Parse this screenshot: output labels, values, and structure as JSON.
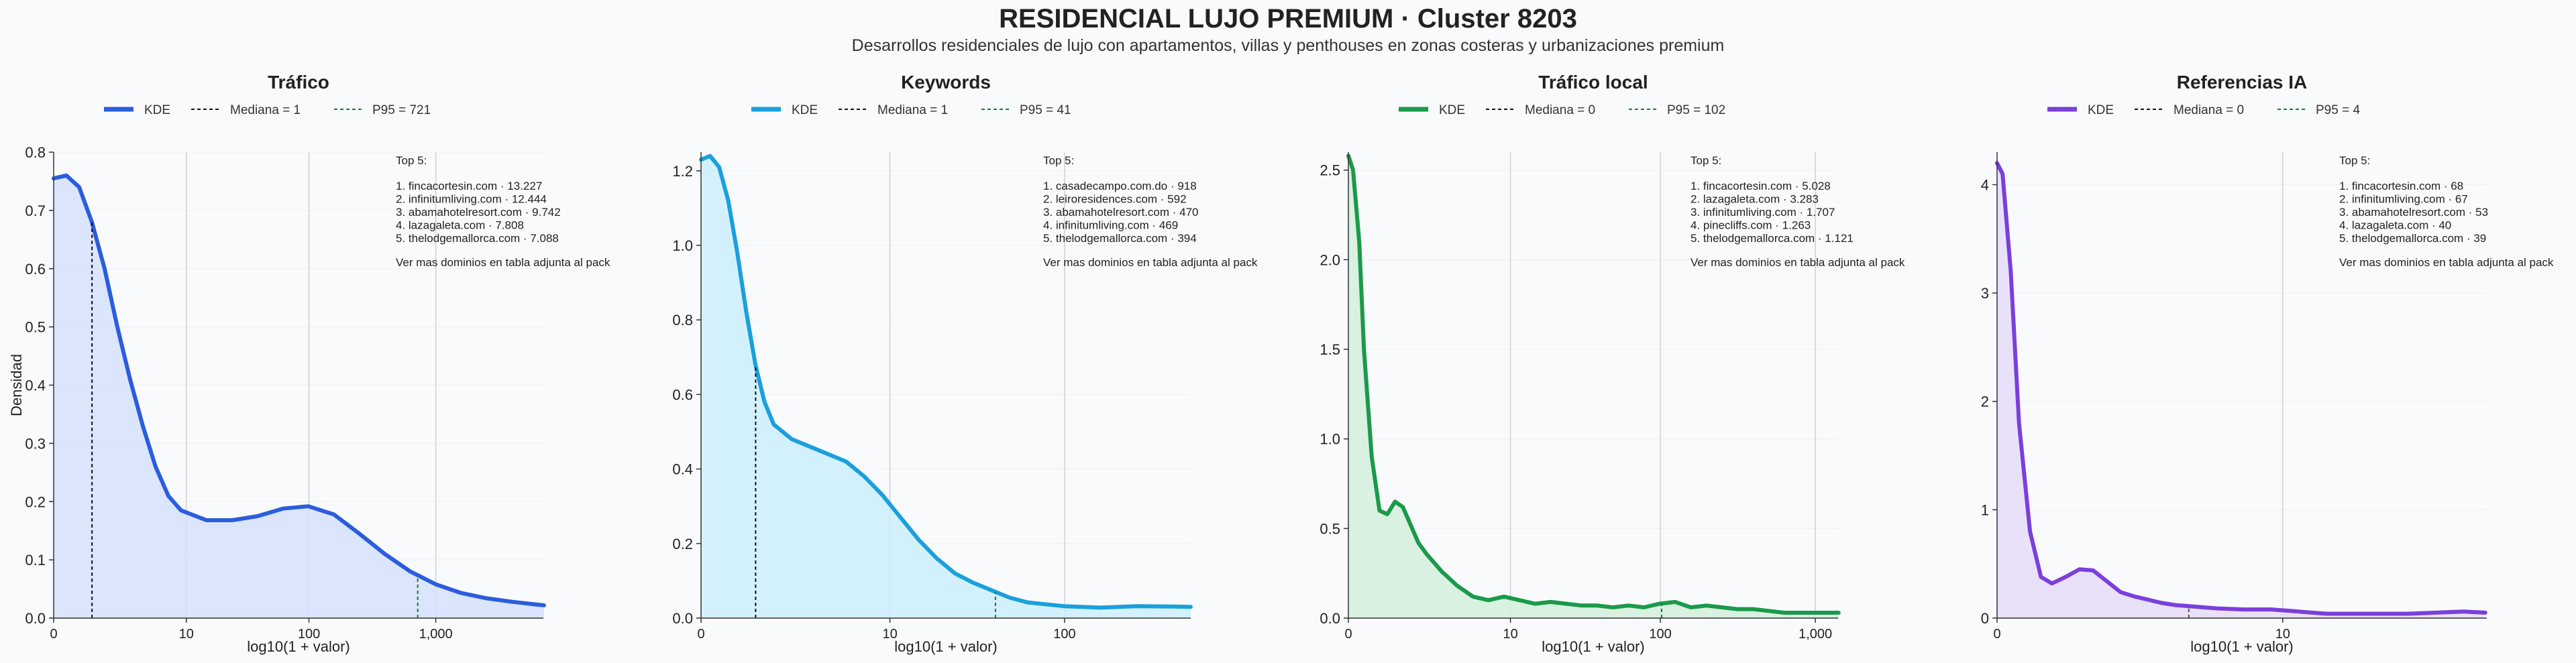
{
  "title": "RESIDENCIAL LUJO PREMIUM · Cluster 8203",
  "subtitle": "Desarrollos residenciales de lujo con apartamentos, villas y penthouses en zonas costeras y urbanizaciones premium",
  "shared": {
    "xlabel": "log10(1 + valor)",
    "ylabel": "Densidad",
    "legend_kde": "KDE",
    "top_label": "Top 5:",
    "footer_note": "Ver mas dominios en tabla adjunta al pack"
  },
  "chart_data": [
    {
      "type": "area",
      "title": "Tráfico",
      "color": "#2b5ddc",
      "fill": "#d6e0fb",
      "p95_color": "#1a7a2e",
      "median_label": "Mediana = 1",
      "p95_label": "P95 = 721",
      "median_x": 1,
      "p95_x": 721,
      "xlim": [
        0,
        7000
      ],
      "xticks": [
        0,
        10,
        100,
        1000
      ],
      "xtick_labels": [
        "0",
        "10",
        "100",
        "1,000"
      ],
      "ylim": [
        0,
        0.8
      ],
      "yticks": [
        0,
        0.1,
        0.2,
        0.3,
        0.4,
        0.5,
        0.6,
        0.7,
        0.8
      ],
      "ytick_labels": [
        "0.0",
        "0.1",
        "0.2",
        "0.3",
        "0.4",
        "0.5",
        "0.6",
        "0.7",
        "0.8"
      ],
      "show_ylabel": true,
      "curve_x": [
        0,
        0.1,
        0.2,
        0.3,
        0.4,
        0.5,
        0.6,
        0.7,
        0.8,
        0.9,
        1.0,
        1.2,
        1.4,
        1.6,
        1.8,
        2.0,
        2.2,
        2.4,
        2.6,
        2.8,
        3.0,
        3.2,
        3.4,
        3.6,
        3.8,
        3.85
      ],
      "curve_y": [
        0.755,
        0.76,
        0.74,
        0.68,
        0.6,
        0.5,
        0.41,
        0.33,
        0.26,
        0.21,
        0.185,
        0.168,
        0.168,
        0.175,
        0.188,
        0.192,
        0.178,
        0.145,
        0.11,
        0.08,
        0.058,
        0.043,
        0.034,
        0.028,
        0.023,
        0.022
      ],
      "top5": [
        "1. fincacortesin.com · 13.227",
        "2. infinitumliving.com · 12.444",
        "3. abamahotelresort.com · 9.742",
        "4. lazagaleta.com · 7.808",
        "5. thelodgemallorca.com · 7.088"
      ]
    },
    {
      "type": "area",
      "title": "Keywords",
      "color": "#1aa0dc",
      "fill": "#cdeefc",
      "p95_color": "#1a7a2e",
      "median_label": "Mediana = 1",
      "p95_label": "P95 = 41",
      "median_x": 1,
      "p95_x": 41,
      "xlim": [
        0,
        500
      ],
      "xticks": [
        0,
        10,
        100
      ],
      "xtick_labels": [
        "0",
        "10",
        "100"
      ],
      "ylim": [
        0,
        1.25
      ],
      "yticks": [
        0,
        0.2,
        0.4,
        0.6,
        0.8,
        1.0,
        1.2
      ],
      "ytick_labels": [
        "0.0",
        "0.2",
        "0.4",
        "0.6",
        "0.8",
        "1.0",
        "1.2"
      ],
      "show_ylabel": false,
      "curve_x": [
        0,
        0.05,
        0.1,
        0.15,
        0.2,
        0.25,
        0.3,
        0.35,
        0.4,
        0.5,
        0.6,
        0.7,
        0.8,
        0.9,
        1.0,
        1.1,
        1.2,
        1.3,
        1.4,
        1.5,
        1.6,
        1.7,
        1.8,
        2.0,
        2.2,
        2.4,
        2.6,
        2.7
      ],
      "curve_y": [
        1.23,
        1.24,
        1.21,
        1.12,
        0.98,
        0.82,
        0.68,
        0.58,
        0.52,
        0.48,
        0.46,
        0.44,
        0.42,
        0.38,
        0.33,
        0.27,
        0.21,
        0.16,
        0.12,
        0.095,
        0.075,
        0.055,
        0.042,
        0.032,
        0.028,
        0.032,
        0.031,
        0.03
      ],
      "top5": [
        "1. casadecampo.com.do · 918",
        "2. leiroresidences.com · 592",
        "3. abamahotelresort.com · 470",
        "4. infinitumliving.com · 469",
        "5. thelodgemallorca.com · 394"
      ]
    },
    {
      "type": "area",
      "title": "Tráfico local",
      "color": "#1a9a4a",
      "fill": "#d4eedc",
      "p95_color": "#1a7a2e",
      "median_label": "Mediana = 0",
      "p95_label": "P95 = 102",
      "median_x": 0,
      "p95_x": 102,
      "xlim": [
        0,
        1400
      ],
      "xticks": [
        0,
        10,
        100,
        1000
      ],
      "xtick_labels": [
        "0",
        "10",
        "100",
        "1,000"
      ],
      "ylim": [
        0,
        2.6
      ],
      "yticks": [
        0,
        0.5,
        1.0,
        1.5,
        2.0,
        2.5
      ],
      "ytick_labels": [
        "0.0",
        "0.5",
        "1.0",
        "1.5",
        "2.0",
        "2.5"
      ],
      "show_ylabel": false,
      "curve_x": [
        0,
        0.03,
        0.07,
        0.1,
        0.15,
        0.2,
        0.25,
        0.3,
        0.35,
        0.4,
        0.45,
        0.5,
        0.6,
        0.7,
        0.8,
        0.9,
        1.0,
        1.1,
        1.2,
        1.3,
        1.4,
        1.5,
        1.6,
        1.7,
        1.8,
        1.9,
        2.0,
        2.1,
        2.2,
        2.3,
        2.4,
        2.5,
        2.6,
        2.7,
        2.8,
        2.9,
        3.0,
        3.15
      ],
      "curve_y": [
        2.58,
        2.5,
        2.1,
        1.5,
        0.9,
        0.6,
        0.58,
        0.65,
        0.62,
        0.52,
        0.42,
        0.36,
        0.26,
        0.18,
        0.12,
        0.1,
        0.12,
        0.1,
        0.08,
        0.09,
        0.08,
        0.07,
        0.07,
        0.06,
        0.07,
        0.06,
        0.08,
        0.09,
        0.06,
        0.07,
        0.06,
        0.05,
        0.05,
        0.04,
        0.03,
        0.03,
        0.03,
        0.03
      ],
      "top5": [
        "1. fincacortesin.com · 5.028",
        "2. lazagaleta.com · 3.283",
        "3. infinitumliving.com · 1.707",
        "4. pinecliffs.com · 1.263",
        "5. thelodgemallorca.com · 1.121"
      ]
    },
    {
      "type": "area",
      "title": "Referencias IA",
      "color": "#7b3fdc",
      "fill": "#e6dcf8",
      "p95_color": "#1a7a2e",
      "median_label": "Mediana = 0",
      "p95_label": "P95 = 4",
      "median_x": 0,
      "p95_x": 4,
      "xlim": [
        0,
        60
      ],
      "xticks": [
        0,
        10
      ],
      "xtick_labels": [
        "0",
        "10"
      ],
      "ylim": [
        0,
        4.3
      ],
      "yticks": [
        0,
        1,
        2,
        3,
        4
      ],
      "ytick_labels": [
        "0",
        "1",
        "2",
        "3",
        "4"
      ],
      "show_ylabel": false,
      "curve_x": [
        0,
        0.02,
        0.05,
        0.08,
        0.12,
        0.16,
        0.2,
        0.25,
        0.3,
        0.35,
        0.4,
        0.45,
        0.5,
        0.55,
        0.6,
        0.65,
        0.7,
        0.8,
        0.9,
        1.0,
        1.1,
        1.2,
        1.3,
        1.4,
        1.5,
        1.6,
        1.7,
        1.78
      ],
      "curve_y": [
        4.2,
        4.1,
        3.2,
        1.8,
        0.8,
        0.38,
        0.32,
        0.38,
        0.45,
        0.44,
        0.34,
        0.24,
        0.2,
        0.17,
        0.14,
        0.12,
        0.11,
        0.09,
        0.08,
        0.08,
        0.06,
        0.04,
        0.04,
        0.04,
        0.04,
        0.05,
        0.06,
        0.05
      ],
      "top5": [
        "1. fincacortesin.com · 68",
        "2. infinitumliving.com · 67",
        "3. abamahotelresort.com · 53",
        "4. lazagaleta.com · 40",
        "5. thelodgemallorca.com · 39"
      ]
    }
  ]
}
